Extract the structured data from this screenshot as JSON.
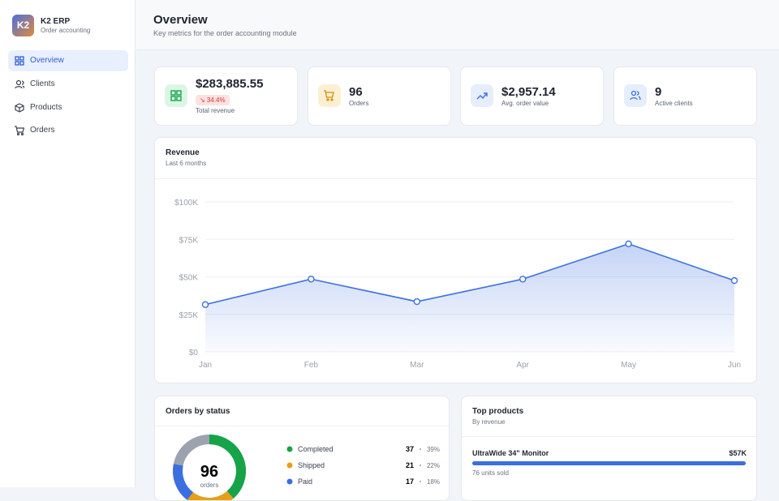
{
  "brand": {
    "logo": "K2",
    "name": "K2 ERP",
    "tagline": "Order accounting"
  },
  "nav": [
    "Overview",
    "Clients",
    "Products",
    "Orders"
  ],
  "header": {
    "title": "Overview",
    "subtitle": "Key metrics for the order accounting module"
  },
  "kpis": [
    {
      "value": "$283,885.55",
      "badge": "↘ 34.4%",
      "label": "Total revenue"
    },
    {
      "value": "96",
      "label": "Orders"
    },
    {
      "value": "$2,957.14",
      "label": "Avg. order value"
    },
    {
      "value": "9",
      "label": "Active clients"
    }
  ],
  "chart_data": {
    "type": "line",
    "title": "Revenue",
    "subtitle": "Last 6 months",
    "categories": [
      "Jan",
      "Feb",
      "Mar",
      "Apr",
      "May",
      "Jun"
    ],
    "values": [
      31500,
      48500,
      33500,
      48500,
      72000,
      47500
    ],
    "color": "#3b6fe0",
    "ylim": [
      0,
      100000
    ],
    "yticks": [
      {
        "value": 0,
        "label": "$0"
      },
      {
        "value": 25000,
        "label": "$25K"
      },
      {
        "value": 50000,
        "label": "$50K"
      },
      {
        "value": 75000,
        "label": "$75K"
      },
      {
        "value": 100000,
        "label": "$100K"
      }
    ],
    "grid": true
  },
  "orders_by_status": {
    "title": "Orders by status",
    "total": 96,
    "total_label": "orders",
    "series": [
      {
        "name": "Completed",
        "color": "#16a34a",
        "value": 37,
        "share": "39%"
      },
      {
        "name": "Shipped",
        "color": "#e5a019",
        "value": 21,
        "share": "22%"
      },
      {
        "name": "Paid",
        "color": "#3b6fe0",
        "value": 17,
        "share": "18%"
      }
    ]
  },
  "top_products": {
    "title": "Top products",
    "subtitle": "By revenue",
    "items": [
      {
        "name": "UltraWide 34\" Monitor",
        "value": 57000,
        "value_label": "$57K",
        "units": "76 units sold"
      }
    ]
  }
}
